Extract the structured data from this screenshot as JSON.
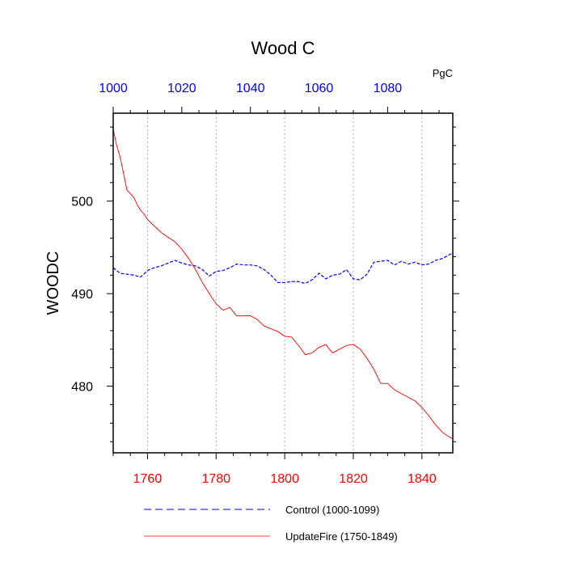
{
  "chart_data": {
    "type": "line",
    "title": "Wood C",
    "units": "PgC",
    "ylabel": "WOODC",
    "xlabel": "",
    "ylim": [
      472.8,
      509.5
    ],
    "grid": "vertical-dashed",
    "legend_placement": "bottom",
    "bottom_axis": {
      "range": [
        1750,
        1849
      ],
      "ticks": [
        1760,
        1780,
        1800,
        1820,
        1840
      ],
      "tick_labels": [
        "1760",
        "1780",
        "1800",
        "1820",
        "1840"
      ],
      "color": "#ff0000"
    },
    "top_axis": {
      "range": [
        1000,
        1099
      ],
      "ticks": [
        1000,
        1020,
        1040,
        1060,
        1080
      ],
      "tick_labels": [
        "1000",
        "1020",
        "1040",
        "1060",
        "1080"
      ],
      "color": "#0000ff"
    },
    "y_ticks": [
      480,
      490,
      500
    ],
    "y_tick_labels": [
      "480",
      "490",
      "500"
    ],
    "series": [
      {
        "name": "Control (1000-1099)",
        "axis": "top",
        "color": "#0000ff",
        "style": "dashed",
        "x": [
          1000,
          1002,
          1004,
          1006,
          1008,
          1010,
          1012,
          1014,
          1016,
          1018,
          1020,
          1022,
          1024,
          1026,
          1028,
          1030,
          1032,
          1034,
          1036,
          1038,
          1040,
          1042,
          1044,
          1046,
          1048,
          1050,
          1052,
          1054,
          1056,
          1058,
          1060,
          1062,
          1064,
          1066,
          1068,
          1070,
          1072,
          1074,
          1076,
          1078,
          1080,
          1082,
          1084,
          1086,
          1088,
          1090,
          1092,
          1094,
          1096,
          1098,
          1099
        ],
        "values": [
          492.8,
          492.2,
          492.1,
          492.0,
          491.8,
          492.5,
          492.8,
          493.0,
          493.3,
          493.6,
          493.3,
          493.1,
          493.0,
          492.6,
          491.9,
          492.4,
          492.5,
          492.8,
          493.2,
          493.1,
          493.1,
          493.0,
          492.6,
          492.0,
          491.2,
          491.2,
          491.3,
          491.3,
          491.1,
          491.5,
          492.2,
          491.6,
          492.0,
          492.1,
          492.6,
          491.6,
          491.5,
          492.1,
          493.4,
          493.5,
          493.6,
          493.1,
          493.5,
          493.2,
          493.4,
          493.1,
          493.2,
          493.6,
          493.8,
          494.2,
          494.4
        ]
      },
      {
        "name": "UpdateFire (1750-1849)",
        "axis": "bottom",
        "color": "#ff0000",
        "style": "solid",
        "x": [
          1750,
          1751,
          1752,
          1753,
          1754,
          1755,
          1756,
          1757,
          1758,
          1759,
          1760,
          1762,
          1764,
          1766,
          1768,
          1770,
          1772,
          1774,
          1776,
          1778,
          1780,
          1782,
          1784,
          1786,
          1788,
          1790,
          1792,
          1794,
          1796,
          1798,
          1800,
          1802,
          1804,
          1806,
          1808,
          1810,
          1812,
          1813,
          1814,
          1816,
          1818,
          1820,
          1822,
          1824,
          1826,
          1828,
          1830,
          1832,
          1834,
          1836,
          1838,
          1840,
          1842,
          1844,
          1846,
          1848,
          1849
        ],
        "values": [
          507.8,
          506.0,
          504.8,
          503.0,
          501.2,
          500.8,
          500.4,
          499.6,
          499.0,
          498.6,
          498.0,
          497.3,
          496.6,
          496.1,
          495.6,
          494.8,
          493.8,
          492.6,
          491.2,
          490.0,
          488.9,
          488.2,
          488.5,
          487.6,
          487.6,
          487.6,
          487.2,
          486.5,
          486.2,
          485.9,
          485.4,
          485.3,
          484.4,
          483.4,
          483.6,
          484.2,
          484.5,
          484.0,
          483.6,
          484.0,
          484.4,
          484.5,
          484.0,
          483.0,
          481.8,
          480.3,
          480.3,
          479.6,
          479.2,
          478.8,
          478.4,
          477.7,
          476.8,
          475.8,
          475.0,
          474.5,
          474.3
        ]
      }
    ]
  }
}
